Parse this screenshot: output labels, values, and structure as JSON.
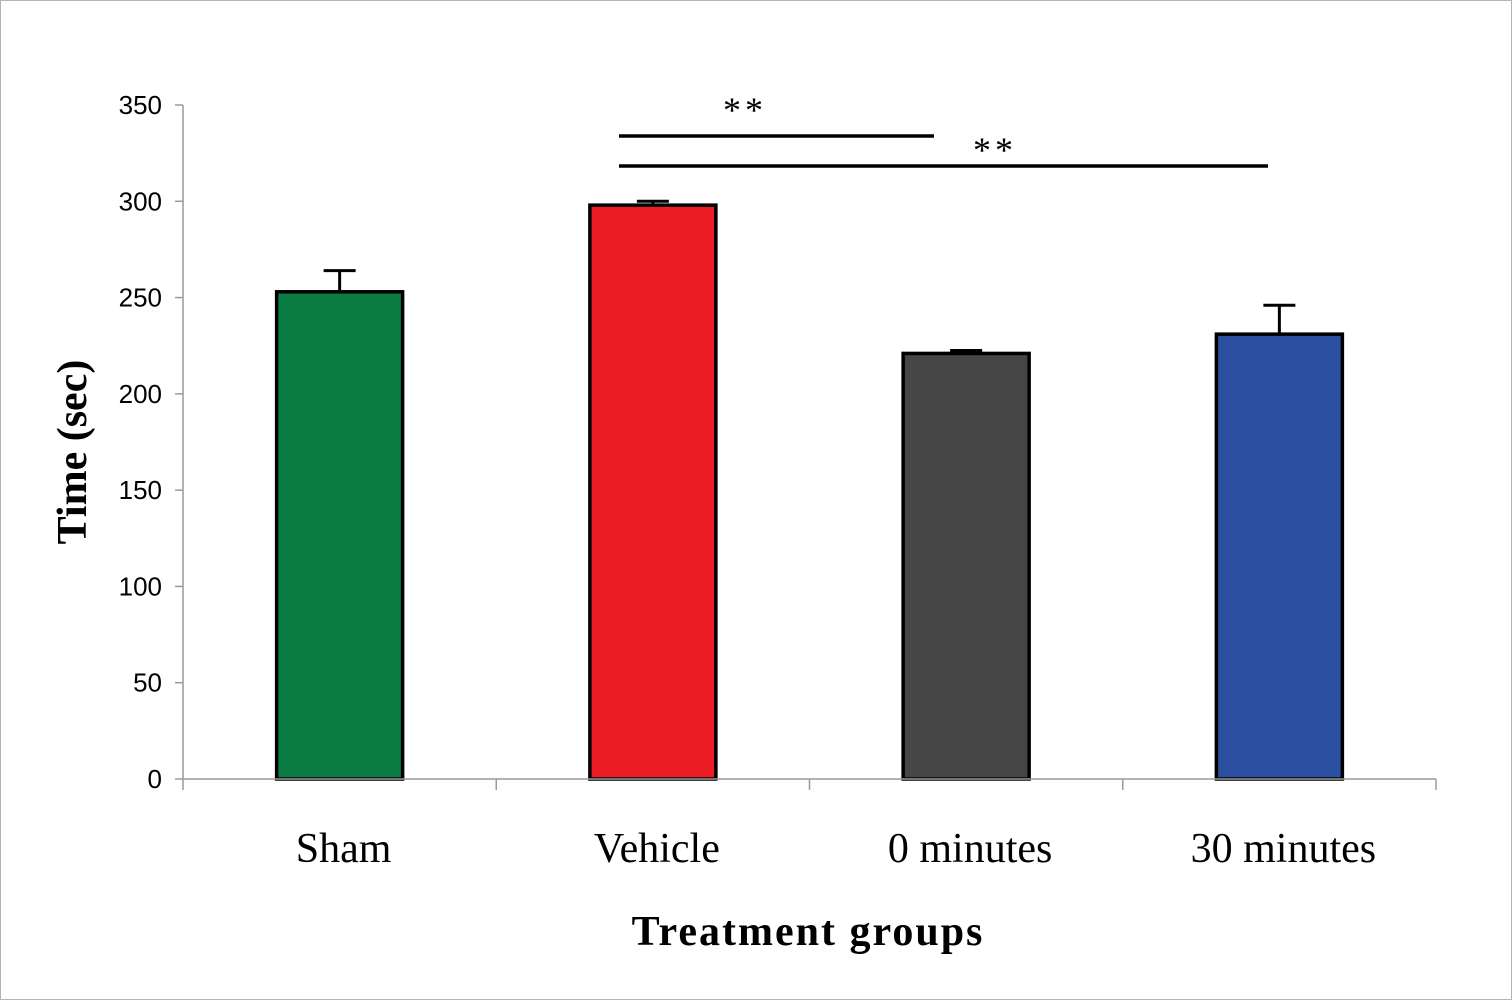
{
  "chart_data": {
    "type": "bar",
    "title": "",
    "xlabel": "Treatment groups",
    "ylabel": "Time (sec)",
    "ylim": [
      0,
      350
    ],
    "yticks": [
      0,
      50,
      100,
      150,
      200,
      250,
      300,
      350
    ],
    "categories": [
      "Sham",
      "Vehicle",
      "0 minutes",
      "30 minutes"
    ],
    "values": [
      253,
      298,
      221,
      231
    ],
    "errors": [
      11,
      2,
      1.5,
      15
    ],
    "bar_colors": [
      "#0a7c41",
      "#ec1c24",
      "#464646",
      "#2b4fa1"
    ],
    "grid": false,
    "legend": "none",
    "annotations": [
      {
        "label": "**",
        "from": "Vehicle",
        "to": "0 minutes"
      },
      {
        "label": "**",
        "from": "Vehicle",
        "to": "30 minutes"
      }
    ]
  }
}
